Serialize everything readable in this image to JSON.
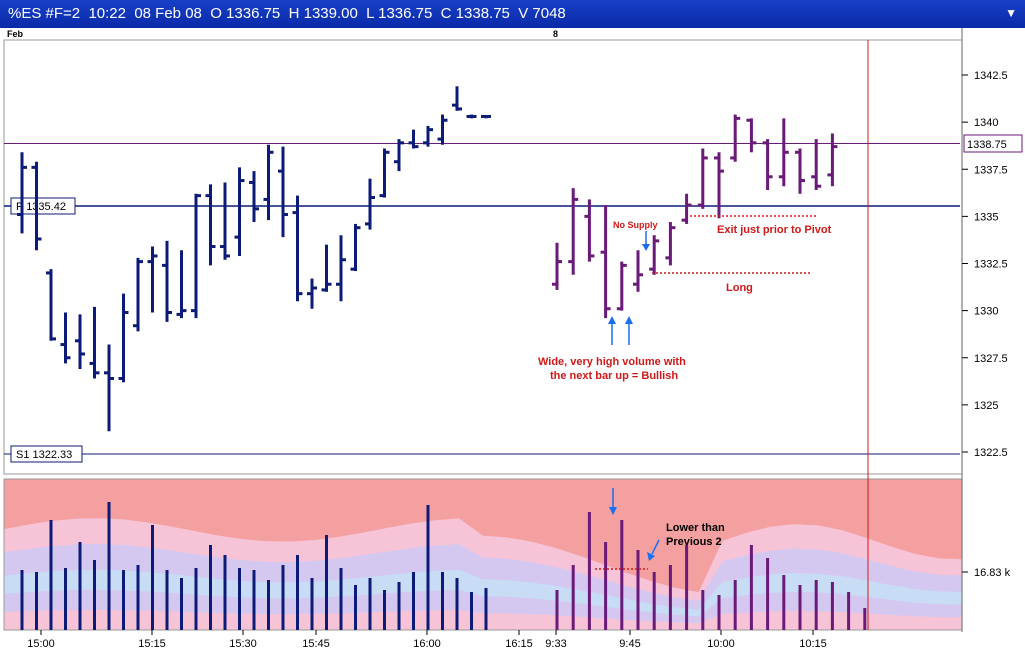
{
  "header": {
    "title": "%ES #F=2  10:22  08 Feb 08  O 1336.75  H 1339.00  L 1336.75  C 1338.75  V 7048",
    "dropdown_icon": "chevron-down-icon"
  },
  "top_labels": {
    "month": "Feb",
    "day": "8"
  },
  "chart_data": {
    "type": "bar",
    "subtype": "ohlc",
    "price_axis": {
      "ticks": [
        "1342.5",
        "1340",
        "1337.5",
        "1335",
        "1332.5",
        "1330",
        "1327.5",
        "1325",
        "1322.5"
      ],
      "range": [
        1321.5,
        1344
      ]
    },
    "last_price": "1338.75",
    "pivot": {
      "label": "P 1335.42",
      "value": 1335.42
    },
    "support": {
      "label": "S1 1322.33",
      "value": 1322.33
    },
    "time_labels": [
      "15:00",
      "15:15",
      "15:30",
      "15:45",
      "16:00",
      "16:15",
      "9:33",
      "9:45",
      "10:00",
      "10:15"
    ],
    "bars": [
      {
        "session": "prior",
        "h": 1338.4,
        "l": 1334.1,
        "o": 1335.1,
        "c": 1337.6
      },
      {
        "session": "prior",
        "h": 1337.9,
        "l": 1333.2,
        "o": 1337.6,
        "c": 1333.8
      },
      {
        "session": "prior",
        "h": 1332.2,
        "l": 1328.4,
        "o": 1332.0,
        "c": 1328.5
      },
      {
        "session": "prior",
        "h": 1329.9,
        "l": 1327.2,
        "o": 1328.2,
        "c": 1327.5
      },
      {
        "session": "prior",
        "h": 1329.8,
        "l": 1326.9,
        "o": 1328.4,
        "c": 1327.7
      },
      {
        "session": "prior",
        "h": 1330.2,
        "l": 1326.4,
        "o": 1327.2,
        "c": 1326.7
      },
      {
        "session": "prior",
        "h": 1328.2,
        "l": 1323.6,
        "o": 1326.7,
        "c": 1326.4
      },
      {
        "session": "prior",
        "h": 1330.9,
        "l": 1326.2,
        "o": 1326.4,
        "c": 1329.9
      },
      {
        "session": "prior",
        "h": 1332.8,
        "l": 1328.9,
        "o": 1329.2,
        "c": 1332.6
      },
      {
        "session": "prior",
        "h": 1333.4,
        "l": 1329.9,
        "o": 1332.6,
        "c": 1332.9
      },
      {
        "session": "prior",
        "h": 1333.7,
        "l": 1329.4,
        "o": 1332.4,
        "c": 1329.9
      },
      {
        "session": "prior",
        "h": 1333.2,
        "l": 1329.6,
        "o": 1329.8,
        "c": 1330.0
      },
      {
        "session": "prior",
        "h": 1336.2,
        "l": 1329.6,
        "o": 1330.0,
        "c": 1336.1
      },
      {
        "session": "prior",
        "h": 1336.7,
        "l": 1332.4,
        "o": 1336.1,
        "c": 1333.4
      },
      {
        "session": "prior",
        "h": 1336.8,
        "l": 1332.7,
        "o": 1333.4,
        "c": 1332.9
      },
      {
        "session": "prior",
        "h": 1337.6,
        "l": 1332.9,
        "o": 1333.9,
        "c": 1336.9
      },
      {
        "session": "prior",
        "h": 1337.4,
        "l": 1334.7,
        "o": 1336.8,
        "c": 1335.4
      },
      {
        "session": "prior",
        "h": 1338.8,
        "l": 1334.8,
        "o": 1335.9,
        "c": 1338.4
      },
      {
        "session": "prior",
        "h": 1338.7,
        "l": 1333.9,
        "o": 1337.4,
        "c": 1335.1
      },
      {
        "session": "prior",
        "h": 1336.1,
        "l": 1330.5,
        "o": 1335.2,
        "c": 1330.9
      },
      {
        "session": "prior",
        "h": 1331.7,
        "l": 1330.1,
        "o": 1330.9,
        "c": 1331.2
      },
      {
        "session": "prior",
        "h": 1333.5,
        "l": 1331.0,
        "o": 1331.1,
        "c": 1331.4
      },
      {
        "session": "prior",
        "h": 1334.0,
        "l": 1330.5,
        "o": 1331.4,
        "c": 1332.7
      },
      {
        "session": "prior",
        "h": 1334.6,
        "l": 1332.1,
        "o": 1332.2,
        "c": 1334.4
      },
      {
        "session": "prior",
        "h": 1337.0,
        "l": 1334.3,
        "o": 1334.6,
        "c": 1336.0
      },
      {
        "session": "prior",
        "h": 1338.6,
        "l": 1336.0,
        "o": 1336.1,
        "c": 1338.4
      },
      {
        "session": "prior",
        "h": 1339.1,
        "l": 1337.4,
        "o": 1337.9,
        "c": 1338.9
      },
      {
        "session": "prior",
        "h": 1339.6,
        "l": 1338.6,
        "o": 1338.9,
        "c": 1338.7
      },
      {
        "session": "prior",
        "h": 1339.8,
        "l": 1338.7,
        "o": 1338.9,
        "c": 1339.6
      },
      {
        "session": "prior",
        "h": 1340.4,
        "l": 1338.8,
        "o": 1339.1,
        "c": 1340.1
      },
      {
        "session": "prior",
        "h": 1341.9,
        "l": 1340.6,
        "o": 1340.9,
        "c": 1340.7
      },
      {
        "session": "prior",
        "h": 1340.4,
        "l": 1340.2,
        "o": 1340.3,
        "c": 1340.3
      },
      {
        "session": "prior",
        "h": 1340.3,
        "l": 1340.2,
        "o": 1340.3,
        "c": 1340.3
      },
      {
        "session": "day",
        "h": 1333.6,
        "l": 1331.1,
        "o": 1331.4,
        "c": 1332.6
      },
      {
        "session": "day",
        "h": 1336.5,
        "l": 1331.9,
        "o": 1332.6,
        "c": 1335.9
      },
      {
        "session": "day",
        "h": 1335.9,
        "l": 1332.6,
        "o": 1335.0,
        "c": 1332.9
      },
      {
        "session": "day",
        "h": 1335.6,
        "l": 1329.6,
        "o": 1333.1,
        "c": 1330.1
      },
      {
        "session": "day",
        "h": 1332.6,
        "l": 1330.0,
        "o": 1330.1,
        "c": 1332.4
      },
      {
        "session": "day",
        "h": 1333.2,
        "l": 1331.0,
        "o": 1331.4,
        "c": 1331.9
      },
      {
        "session": "day",
        "h": 1334.0,
        "l": 1331.9,
        "o": 1332.2,
        "c": 1333.7
      },
      {
        "session": "day",
        "h": 1334.7,
        "l": 1332.4,
        "o": 1332.8,
        "c": 1334.4
      },
      {
        "session": "day",
        "h": 1336.2,
        "l": 1334.6,
        "o": 1334.8,
        "c": 1335.6
      },
      {
        "session": "day",
        "h": 1338.6,
        "l": 1335.4,
        "o": 1335.6,
        "c": 1338.1
      },
      {
        "session": "day",
        "h": 1338.4,
        "l": 1334.9,
        "o": 1338.1,
        "c": 1337.4
      },
      {
        "session": "day",
        "h": 1340.4,
        "l": 1337.9,
        "o": 1338.1,
        "c": 1340.2
      },
      {
        "session": "day",
        "h": 1340.2,
        "l": 1338.4,
        "o": 1340.1,
        "c": 1338.9
      },
      {
        "session": "day",
        "h": 1339.1,
        "l": 1336.4,
        "o": 1338.9,
        "c": 1337.1
      },
      {
        "session": "day",
        "h": 1340.2,
        "l": 1336.6,
        "o": 1337.1,
        "c": 1338.4
      },
      {
        "session": "day",
        "h": 1338.6,
        "l": 1336.2,
        "o": 1338.4,
        "c": 1336.9
      },
      {
        "session": "day",
        "h": 1339.1,
        "l": 1336.4,
        "o": 1337.1,
        "c": 1336.6
      },
      {
        "session": "day",
        "h": 1339.4,
        "l": 1336.6,
        "o": 1337.2,
        "c": 1338.7
      }
    ],
    "volume_axis": {
      "tick": "16.83 k"
    },
    "volumes": [
      60,
      58,
      110,
      62,
      88,
      70,
      128,
      60,
      65,
      105,
      60,
      52,
      62,
      85,
      75,
      62,
      60,
      50,
      65,
      75,
      52,
      95,
      62,
      45,
      52,
      40,
      48,
      58,
      125,
      58,
      52,
      38,
      42,
      40,
      65,
      118,
      88,
      110,
      80,
      58,
      65,
      85,
      40,
      35,
      50,
      85,
      72,
      55,
      45,
      50,
      48,
      38,
      22
    ]
  },
  "annotations": {
    "no_supply": "No Supply",
    "exit": "Exit just prior to Pivot",
    "long": "Long",
    "wide_line1": "Wide, very high volume with",
    "wide_line2": "the next bar up = Bullish",
    "lower_line1": "Lower than",
    "lower_line2": "Previous 2"
  },
  "colors": {
    "prior_bars": "#0c1a78",
    "day_bars": "#6a1a78",
    "annotation": "#d01818",
    "arrow": "#1a6ef0",
    "pivot_line": "#0c1a78",
    "cursor_line": "#d81818"
  }
}
